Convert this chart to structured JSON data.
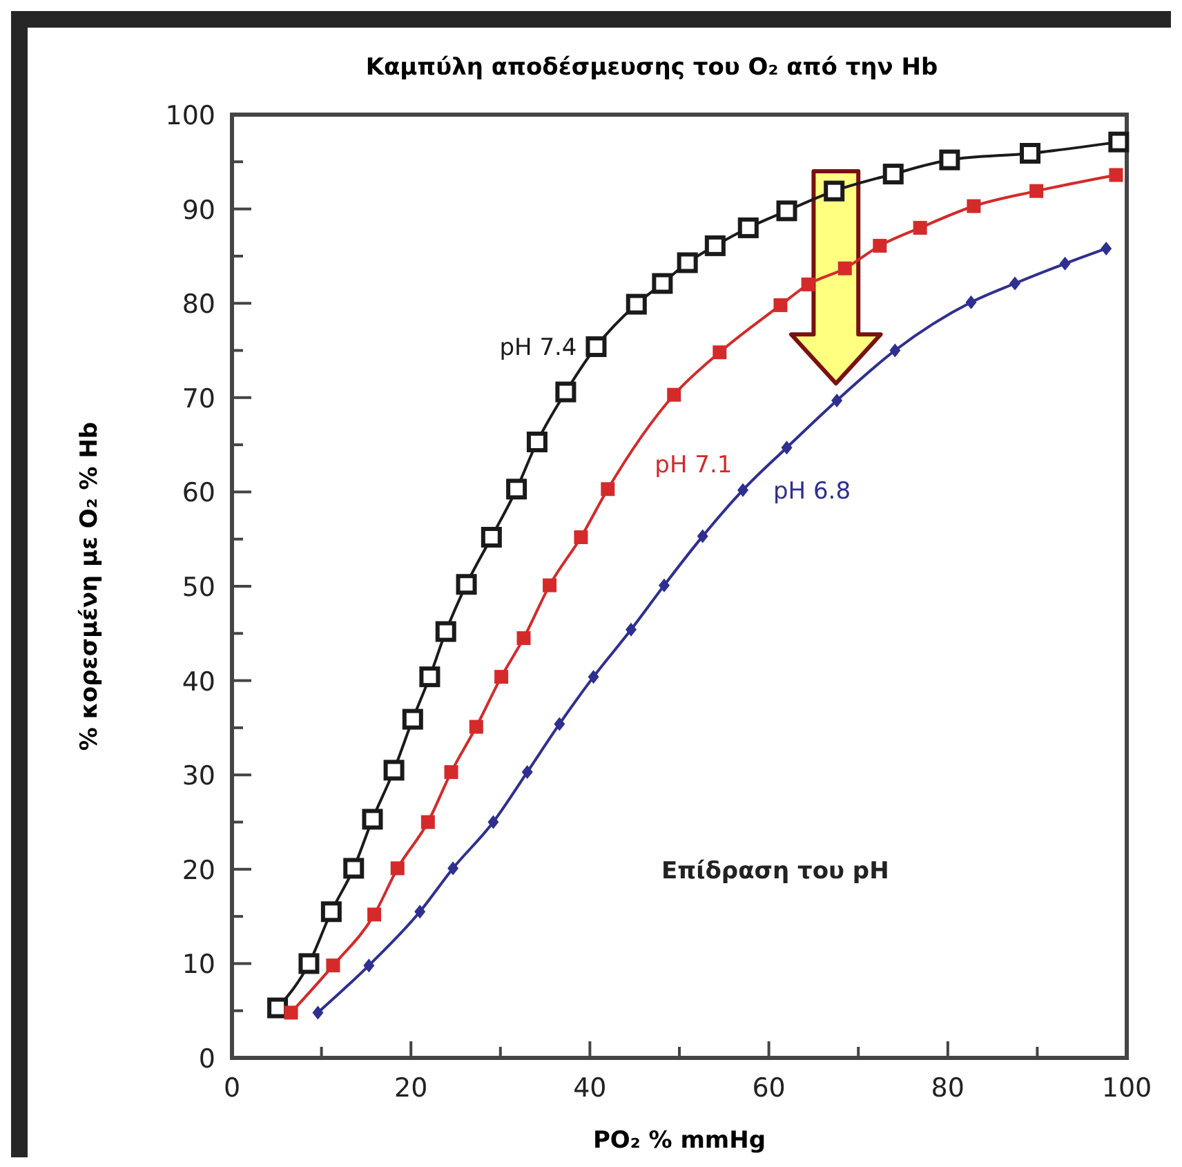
{
  "chart_data": {
    "type": "line",
    "title": "Καμπύλη αποδέσμευσης του O₂ από την Hb",
    "xlabel": "PO₂ % mmHg",
    "ylabel": "% κορεσμένη με O₂ % Hb",
    "xlim": [
      0,
      100
    ],
    "ylim": [
      0,
      100
    ],
    "xticks": [
      0,
      {
        "value": 10,
        "label": null
      },
      20,
      {
        "value": 30,
        "label": null
      },
      40,
      {
        "value": 50,
        "label": null
      },
      60,
      {
        "value": 70,
        "label": null
      },
      80,
      {
        "value": 90,
        "label": null
      },
      100
    ],
    "yticks": [
      0,
      {
        "value": 5,
        "label": null
      },
      10,
      {
        "value": 15,
        "label": null
      },
      20,
      {
        "value": 25,
        "label": null
      },
      30,
      {
        "value": 35,
        "label": null
      },
      40,
      {
        "value": 45,
        "label": null
      },
      50,
      {
        "value": 55,
        "label": null
      },
      60,
      {
        "value": 65,
        "label": null
      },
      70,
      {
        "value": 75,
        "label": null
      },
      80,
      {
        "value": 85,
        "label": null
      },
      90,
      {
        "value": 95,
        "label": null
      },
      100
    ],
    "grid": false,
    "annotations": [
      "Επίδραση του pH"
    ],
    "series": [
      {
        "name": "pH 7.4",
        "color": "#1a1a1a",
        "marker": "square",
        "x": [
          5.1,
          8.6,
          11.1,
          13.6,
          15.7,
          18.1,
          20.2,
          22.1,
          23.9,
          26.2,
          29.0,
          31.8,
          34.1,
          37.3,
          40.7,
          45.2,
          48.1,
          50.9,
          54.0,
          57.7,
          62.0,
          67.3,
          73.9,
          80.2,
          89.2,
          99.1
        ],
        "values": [
          5.3,
          10.0,
          15.5,
          20.1,
          25.3,
          30.5,
          35.9,
          40.4,
          45.2,
          50.2,
          55.2,
          60.3,
          65.3,
          70.6,
          75.4,
          79.9,
          82.1,
          84.3,
          86.1,
          88.0,
          89.8,
          91.9,
          93.7,
          95.2,
          95.9,
          97.1
        ]
      },
      {
        "name": "pH 7.1",
        "color": "#d42a2a",
        "marker": "square",
        "x": [
          6.6,
          11.3,
          15.9,
          18.5,
          21.9,
          24.5,
          27.3,
          30.1,
          32.6,
          35.5,
          39.0,
          42.0,
          49.4,
          54.5,
          61.3,
          64.4,
          68.5,
          72.4,
          76.9,
          82.9,
          89.9,
          98.8
        ],
        "values": [
          4.8,
          9.8,
          15.2,
          20.1,
          25.0,
          30.3,
          35.1,
          40.4,
          44.5,
          50.1,
          55.2,
          60.3,
          70.3,
          74.8,
          79.8,
          82.0,
          83.7,
          86.1,
          88.0,
          90.3,
          91.9,
          93.6
        ]
      },
      {
        "name": "pH 6.8",
        "color": "#2e2f8f",
        "marker": "diamond",
        "x": [
          9.6,
          15.3,
          21.0,
          24.7,
          29.2,
          33.0,
          36.6,
          40.4,
          44.6,
          48.3,
          52.6,
          57.1,
          62.0,
          67.6,
          74.1,
          82.6,
          87.5,
          93.1,
          97.7
        ],
        "values": [
          4.8,
          9.8,
          15.5,
          20.1,
          25.0,
          30.3,
          35.4,
          40.4,
          45.4,
          50.1,
          55.3,
          60.2,
          64.7,
          69.7,
          75.0,
          80.1,
          82.1,
          84.2,
          85.8
        ]
      }
    ]
  }
}
